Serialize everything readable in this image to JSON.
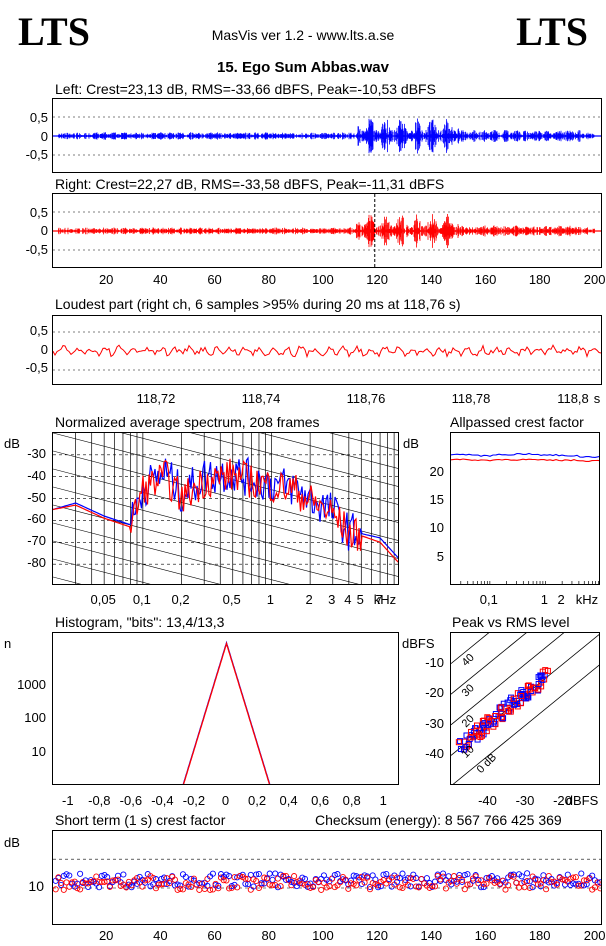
{
  "header": {
    "logo_left": "LTS",
    "logo_right": "LTS",
    "app_title": "MasVis ver 1.2 - www.lts.a.se",
    "file_title": "15. Ego Sum Abbas.wav"
  },
  "colors": {
    "left": "#0000ff",
    "right": "#ff0000"
  },
  "waveforms": {
    "left_label": "Left: Crest=23,13 dB, RMS=-33,66 dBFS, Peak=-10,53 dBFS",
    "right_label": "Right: Crest=22,27 dB, RMS=-33,58 dBFS, Peak=-11,31 dBFS",
    "y_ticks": [
      "0,5",
      "0",
      "-0,5"
    ],
    "x_ticks": [
      "20",
      "40",
      "60",
      "80",
      "100",
      "120",
      "140",
      "160",
      "180",
      "200s"
    ],
    "marker_s": 118.76
  },
  "loudest": {
    "label": "Loudest part (right ch, 6 samples >95% during 20 ms at 118,76 s)",
    "y_ticks": [
      "0,5",
      "0",
      "-0,5"
    ],
    "x_ticks": [
      "118,72",
      "118,74",
      "118,76",
      "118,78",
      "118,8",
      "s"
    ]
  },
  "spectrum": {
    "title": "Normalized average spectrum, 208 frames",
    "y_unit": "dB",
    "y_ticks": [
      "-30",
      "-40",
      "-50",
      "-60",
      "-70",
      "-80"
    ],
    "x_ticks": [
      "0,05",
      "0,1",
      "0,2",
      "0,5",
      "1",
      "2",
      "3",
      "4",
      "5",
      "7",
      "kHz"
    ]
  },
  "allpassed": {
    "title": "Allpassed crest factor",
    "y_unit": "dB",
    "y_ticks": [
      "20",
      "15",
      "10",
      "5"
    ],
    "x_ticks": [
      "0,1",
      "1",
      "2",
      "kHz"
    ]
  },
  "histogram": {
    "title": "Histogram, \"bits\": 13,4/13,3",
    "y_unit": "n",
    "y_ticks": [
      "1000",
      "100",
      "10"
    ],
    "x_ticks": [
      "-1",
      "-0,8",
      "-0,6",
      "-0,4",
      "-0,2",
      "0",
      "0,2",
      "0,4",
      "0,6",
      "0,8",
      "1"
    ]
  },
  "peakrms": {
    "title": "Peak vs RMS level",
    "y_unit": "dBFS",
    "y_ticks": [
      "-10",
      "-20",
      "-30",
      "-40"
    ],
    "x_ticks": [
      "-40",
      "-30",
      "-20",
      "dBFS"
    ],
    "diag_labels": [
      "40",
      "30",
      "20",
      "10",
      "0 dB"
    ]
  },
  "crest": {
    "title": "Short term (1 s) crest factor",
    "checksum": "Checksum (energy):   8 567 766 425 369",
    "y_unit": "dB",
    "y_ticks": [
      "10"
    ],
    "x_ticks": [
      "20",
      "40",
      "60",
      "80",
      "100",
      "120",
      "140",
      "160",
      "180",
      "200s"
    ]
  },
  "chart_data": [
    {
      "type": "line",
      "title": "Left",
      "xlabel": "s",
      "xlim": [
        0,
        203
      ],
      "ylim": [
        -1,
        1
      ],
      "summary": {
        "crest_db": 23.13,
        "rms_dbfs": -33.66,
        "peak_dbfs": -10.53
      }
    },
    {
      "type": "line",
      "title": "Right",
      "xlabel": "s",
      "xlim": [
        0,
        203
      ],
      "ylim": [
        -1,
        1
      ],
      "summary": {
        "crest_db": 22.27,
        "rms_dbfs": -33.58,
        "peak_dbfs": -11.31
      }
    },
    {
      "type": "line",
      "title": "Loudest part",
      "xlabel": "s",
      "xlim": [
        118.71,
        118.81
      ],
      "ylim": [
        -1,
        1
      ]
    },
    {
      "type": "line",
      "title": "Normalized average spectrum, 208 frames",
      "ylabel": "dB",
      "xlabel": "kHz",
      "ylim": [
        -90,
        -20
      ],
      "x": [
        0.02,
        0.03,
        0.05,
        0.08,
        0.1,
        0.15,
        0.2,
        0.3,
        0.5,
        0.7,
        1,
        1.5,
        2,
        3,
        4,
        5,
        7,
        10
      ],
      "series": [
        {
          "name": "Left",
          "values": [
            -55,
            -52,
            -58,
            -62,
            -45,
            -38,
            -48,
            -40,
            -38,
            -41,
            -43,
            -45,
            -50,
            -56,
            -65,
            -66,
            -68,
            -78
          ]
        },
        {
          "name": "Right",
          "values": [
            -55,
            -53,
            -59,
            -63,
            -46,
            -40,
            -50,
            -42,
            -39,
            -42,
            -44,
            -46,
            -51,
            -57,
            -66,
            -67,
            -70,
            -80
          ]
        }
      ]
    },
    {
      "type": "line",
      "title": "Allpassed crest factor",
      "ylabel": "dB",
      "xlabel": "kHz",
      "ylim": [
        0,
        27
      ],
      "x": [
        0.02,
        0.05,
        0.1,
        0.2,
        0.5,
        1,
        2,
        5
      ],
      "series": [
        {
          "name": "Left",
          "values": [
            23.2,
            23.0,
            23.2,
            23.3,
            23.1,
            23.0,
            22.8,
            23.0
          ]
        },
        {
          "name": "Right",
          "values": [
            22.3,
            22.2,
            22.3,
            22.3,
            22.2,
            22.2,
            22.1,
            22.2
          ]
        }
      ]
    },
    {
      "type": "line",
      "title": "Histogram",
      "ylabel": "n",
      "ylim": [
        1,
        30000
      ],
      "xlim": [
        -1,
        1
      ],
      "x": [
        -0.3,
        -0.2,
        -0.1,
        -0.05,
        0,
        0.05,
        0.1,
        0.2,
        0.3
      ],
      "series": [
        {
          "name": "Left",
          "values": [
            1,
            5,
            60,
            400,
            20000,
            400,
            60,
            5,
            1
          ]
        },
        {
          "name": "Right",
          "values": [
            1,
            4,
            55,
            380,
            19000,
            380,
            55,
            4,
            1
          ]
        }
      ]
    },
    {
      "type": "scatter",
      "title": "Peak vs RMS level",
      "xlabel": "dBFS",
      "ylabel": "dBFS",
      "xlim": [
        -50,
        -10
      ],
      "ylim": [
        -50,
        0
      ],
      "x": [
        -48,
        -45,
        -43,
        -41,
        -39,
        -37,
        -35,
        -33,
        -31,
        -29,
        -27,
        -25
      ],
      "y": [
        -40,
        -37,
        -35,
        -32,
        -31,
        -28,
        -27,
        -24,
        -22,
        -20,
        -17,
        -15
      ]
    },
    {
      "type": "scatter",
      "title": "Short term (1 s) crest factor",
      "ylabel": "dB",
      "xlim": [
        0,
        203
      ],
      "x": [
        5,
        15,
        25,
        35,
        45,
        55,
        65,
        75,
        85,
        95,
        105,
        115,
        125,
        135,
        145,
        155,
        165,
        175,
        185,
        195
      ],
      "y": [
        11,
        12,
        12,
        11,
        15,
        12,
        13,
        12,
        14,
        11,
        12,
        13,
        12,
        13,
        11,
        12,
        11,
        12,
        13,
        11
      ]
    }
  ]
}
